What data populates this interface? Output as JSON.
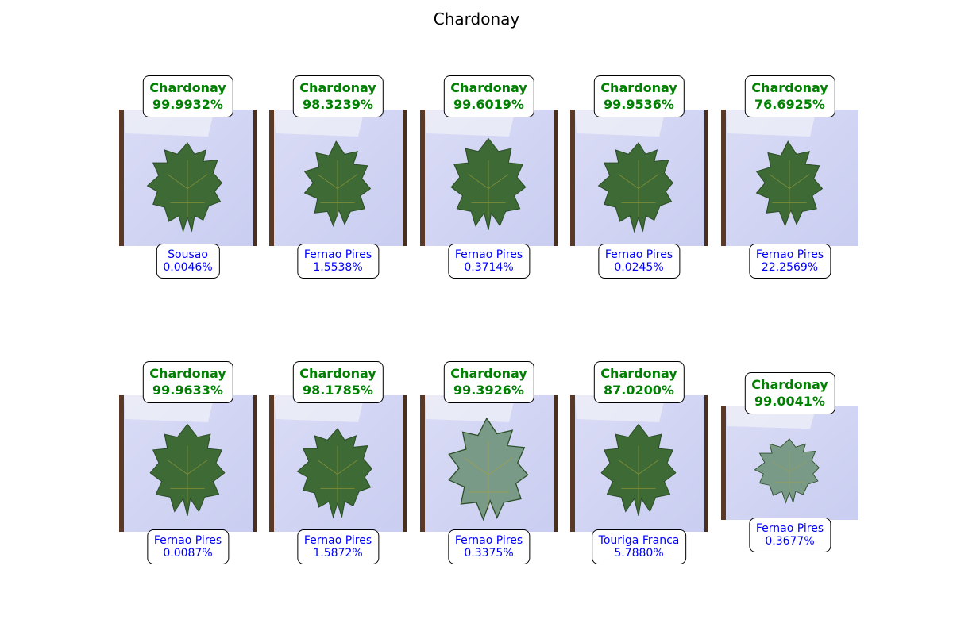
{
  "title": "Chardonay",
  "leaf_color": "#3e6b35",
  "frosted_leaf_color": "#7a9a88",
  "background_color": "#c9cdf0",
  "predicted_color": "#008000",
  "runner_up_color": "#0000ff",
  "items": [
    {
      "pred_label": "Chardonay",
      "pred_pct": "99.9932%",
      "alt_label": "Sousao",
      "alt_pct": "0.0046%"
    },
    {
      "pred_label": "Chardonay",
      "pred_pct": "98.3239%",
      "alt_label": "Fernao Pires",
      "alt_pct": "1.5538%"
    },
    {
      "pred_label": "Chardonay",
      "pred_pct": "99.6019%",
      "alt_label": "Fernao Pires",
      "alt_pct": "0.3714%"
    },
    {
      "pred_label": "Chardonay",
      "pred_pct": "99.9536%",
      "alt_label": "Fernao Pires",
      "alt_pct": "0.0245%"
    },
    {
      "pred_label": "Chardonay",
      "pred_pct": "76.6925%",
      "alt_label": "Fernao Pires",
      "alt_pct": "22.2569%"
    },
    {
      "pred_label": "Chardonay",
      "pred_pct": "99.9633%",
      "alt_label": "Fernao Pires",
      "alt_pct": "0.0087%"
    },
    {
      "pred_label": "Chardonay",
      "pred_pct": "98.1785%",
      "alt_label": "Fernao Pires",
      "alt_pct": "1.5872%"
    },
    {
      "pred_label": "Chardonay",
      "pred_pct": "99.3926%",
      "alt_label": "Fernao Pires",
      "alt_pct": "0.3375%"
    },
    {
      "pred_label": "Chardonay",
      "pred_pct": "87.0200%",
      "alt_label": "Touriga Franca",
      "alt_pct": "5.7880%"
    },
    {
      "pred_label": "Chardonay",
      "pred_pct": "99.0041%",
      "alt_label": "Fernao Pires",
      "alt_pct": "0.3677%"
    }
  ]
}
